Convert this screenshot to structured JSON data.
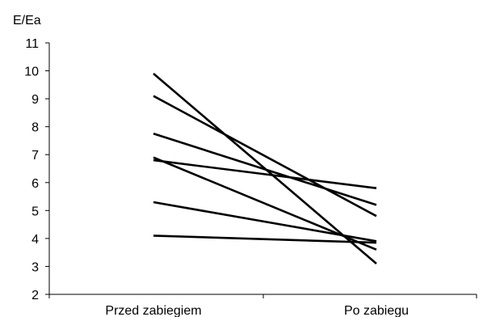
{
  "chart_data": {
    "type": "line",
    "ylabel": "E/Ea",
    "categories": [
      "Przed zabiegiem",
      "Po zabiegu"
    ],
    "ylim": [
      2,
      11
    ],
    "yticks": [
      2,
      3,
      4,
      5,
      6,
      7,
      8,
      9,
      10,
      11
    ],
    "grid": false,
    "legend": "none",
    "line_color": "#000000",
    "series": [
      {
        "values": [
          9.9,
          3.1
        ]
      },
      {
        "values": [
          9.1,
          4.8
        ]
      },
      {
        "values": [
          7.75,
          5.2
        ]
      },
      {
        "values": [
          6.9,
          3.6
        ]
      },
      {
        "values": [
          6.8,
          5.8
        ]
      },
      {
        "values": [
          5.3,
          3.9
        ]
      },
      {
        "values": [
          4.1,
          3.85
        ]
      }
    ]
  }
}
